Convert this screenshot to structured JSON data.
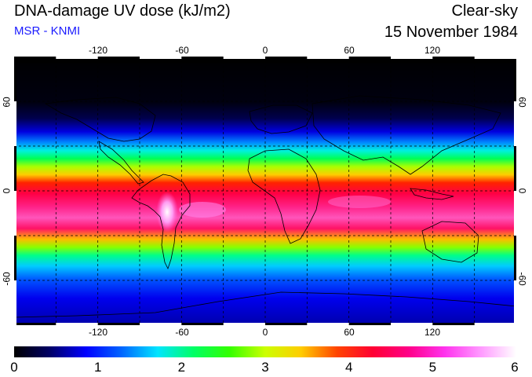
{
  "header": {
    "title": "DNA-damage UV dose (kJ/m2)",
    "subtitle": "MSR - KNMI",
    "subtitle_color": "#1a1aff",
    "sky": "Clear-sky",
    "date": "15 November 1984"
  },
  "axes": {
    "lon_ticks": [
      "-120",
      "-60",
      "0",
      "60",
      "120"
    ],
    "lon_values": [
      -120,
      -60,
      0,
      60,
      120
    ],
    "lat_ticks": [
      "60",
      "0",
      "-60"
    ],
    "lat_values": [
      60,
      0,
      -60
    ],
    "lon_range": [
      -180,
      180
    ],
    "lat_range": [
      -90,
      90
    ],
    "gridlines": "dashed every 30 degrees"
  },
  "colorbar": {
    "labels": [
      "0",
      "1",
      "2",
      "3",
      "4",
      "5",
      "6"
    ],
    "range": [
      0,
      6
    ],
    "unit": "kJ/m2"
  },
  "palette": [
    "#000000",
    "#000066",
    "#0000ff",
    "#0066ff",
    "#00e5ff",
    "#00ff66",
    "#33ff00",
    "#ccff00",
    "#ffcc00",
    "#ff4400",
    "#ff0033",
    "#ff0088",
    "#ff33ee",
    "#ff99ff",
    "#ffffff"
  ]
}
